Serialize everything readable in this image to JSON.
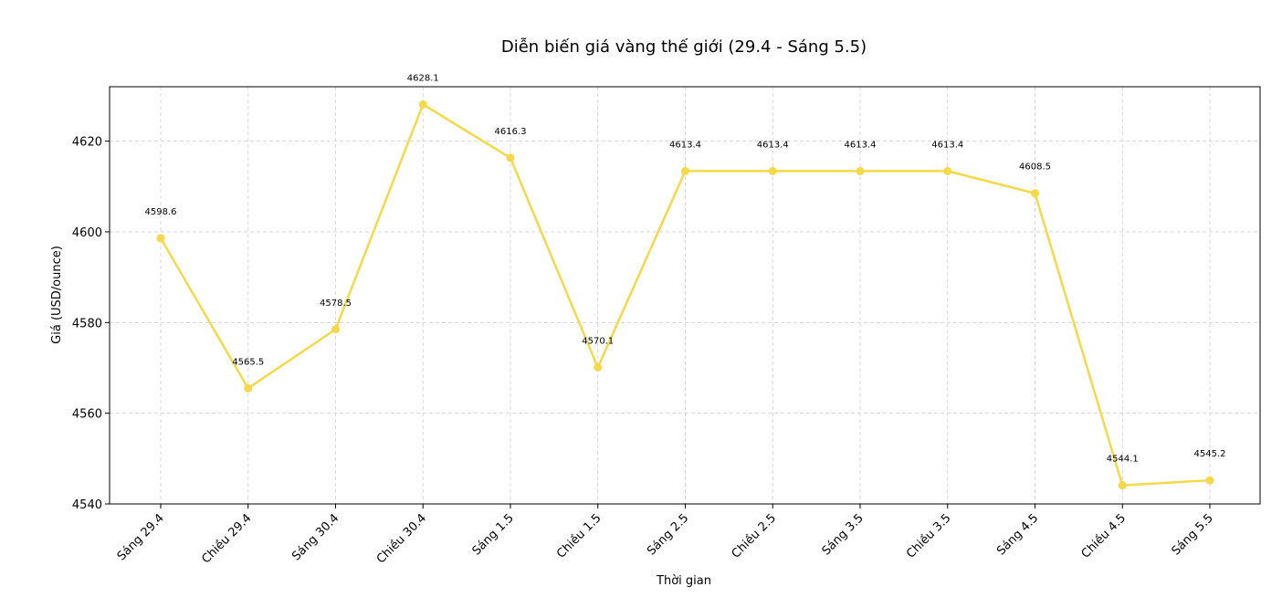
{
  "chart_data": {
    "type": "line",
    "title": "Diễn biến giá vàng thế giới (29.4 - Sáng 5.5)",
    "xlabel": "Thời gian",
    "ylabel": "Giá (USD/ounce)",
    "categories": [
      "Sáng 29.4",
      "Chiều 29.4",
      "Sáng 30.4",
      "Chiều 30.4",
      "Sáng 1.5",
      "Chiều 1.5",
      "Sáng 2.5",
      "Chiều 2.5",
      "Sáng 3.5",
      "Chiều 3.5",
      "Sáng 4.5",
      "Chiều 4.5",
      "Sáng 5.5"
    ],
    "values": [
      4598.6,
      4565.5,
      4578.5,
      4628.1,
      4616.3,
      4570.1,
      4613.4,
      4613.4,
      4613.4,
      4613.4,
      4608.5,
      4544.1,
      4545.2
    ],
    "labels": [
      "4598.6",
      "4565.5",
      "4578.5",
      "4628.1",
      "4616.3",
      "4570.1",
      "4613.4",
      "4613.4",
      "4613.4",
      "4613.4",
      "4608.5",
      "4544.1",
      "4545.2"
    ],
    "yticks": [
      4540,
      4560,
      4580,
      4600,
      4620
    ],
    "ytick_labels": [
      "4540",
      "4560",
      "4580",
      "4600",
      "4620"
    ],
    "ylim": [
      4540,
      4632
    ],
    "grid": true,
    "legend": "none",
    "color": "#f5d949"
  }
}
